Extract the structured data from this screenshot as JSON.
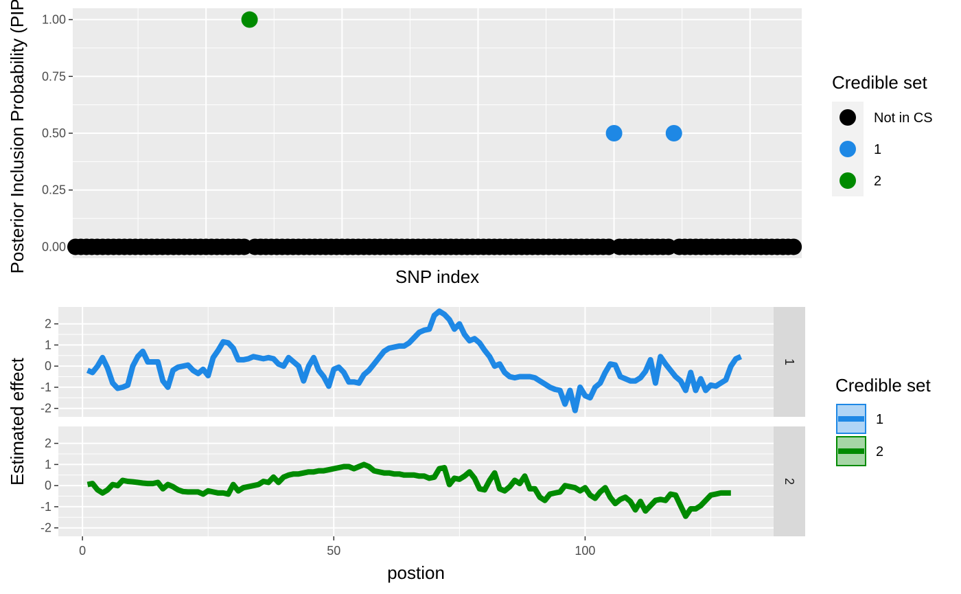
{
  "colors": {
    "not_in_cs": "#000000",
    "cs1": "#1E88E5",
    "cs2": "#008A00",
    "panel_bg": "#EBEBEB",
    "grid": "#FFFFFF",
    "strip_bg": "#D9D9D9"
  },
  "chart_data": [
    {
      "type": "scatter",
      "title": "",
      "xlabel": "SNP index",
      "ylabel": "Posterior Inclusion Probability (PIP)",
      "ylim": [
        -0.05,
        1.05
      ],
      "y_ticks": [
        "0.00",
        "0.25",
        "0.50",
        "0.75",
        "1.00"
      ],
      "y_tick_values": [
        0,
        0.25,
        0.5,
        0.75,
        1.0
      ],
      "xlim": [
        0.5,
        134.5
      ],
      "grid": true,
      "legend": {
        "title": "Credible set",
        "placement": "right",
        "entries": [
          "Not in CS",
          "1",
          "2"
        ]
      },
      "series": [
        {
          "name": "Not in CS",
          "x": [
            1,
            2,
            3,
            4,
            5,
            6,
            7,
            8,
            9,
            10,
            11,
            12,
            13,
            14,
            15,
            16,
            17,
            18,
            19,
            20,
            21,
            22,
            23,
            24,
            25,
            26,
            27,
            28,
            29,
            30,
            31,
            32,
            34,
            35,
            36,
            37,
            38,
            39,
            40,
            41,
            42,
            43,
            44,
            45,
            46,
            47,
            48,
            49,
            50,
            51,
            52,
            53,
            54,
            55,
            56,
            57,
            58,
            59,
            60,
            61,
            62,
            63,
            64,
            65,
            66,
            67,
            68,
            69,
            70,
            71,
            72,
            73,
            74,
            75,
            76,
            77,
            78,
            79,
            80,
            81,
            82,
            83,
            84,
            85,
            86,
            87,
            88,
            89,
            90,
            91,
            92,
            93,
            94,
            95,
            96,
            97,
            98,
            99,
            101,
            102,
            103,
            104,
            105,
            106,
            107,
            108,
            109,
            110,
            112,
            113,
            114,
            115,
            116,
            117,
            118,
            119,
            120,
            121,
            122,
            123,
            124,
            125,
            126,
            127,
            128,
            129,
            130,
            131,
            132,
            133
          ],
          "y": 0
        },
        {
          "name": "1",
          "x": [
            100,
            111
          ],
          "y": [
            0.5,
            0.5
          ]
        },
        {
          "name": "2",
          "x": [
            33
          ],
          "y": [
            1.0
          ]
        }
      ]
    },
    {
      "type": "line",
      "title": "",
      "xlabel": "postion",
      "ylabel": "Estimated effect",
      "xlim": [
        -4.8,
        137.5
      ],
      "x_ticks": [
        "0",
        "50",
        "100"
      ],
      "x_tick_values": [
        0,
        50,
        100
      ],
      "ylim": [
        -2.4,
        2.8
      ],
      "y_ticks": [
        "-2",
        "-1",
        "0",
        "1",
        "2"
      ],
      "y_tick_values": [
        -2,
        -1,
        0,
        1,
        2
      ],
      "facets": [
        "1",
        "2"
      ],
      "grid": true,
      "legend": {
        "title": "Credible set",
        "placement": "right",
        "entries": [
          "1",
          "2"
        ]
      },
      "series": [
        {
          "name": "1",
          "values": [
            -0.2,
            -0.3,
            0.0,
            0.4,
            -0.1,
            -0.8,
            -1.05,
            -1.0,
            -0.9,
            0.0,
            0.45,
            0.7,
            0.2,
            0.2,
            0.2,
            -0.7,
            -1.0,
            -0.2,
            -0.05,
            0.0,
            0.05,
            -0.2,
            -0.35,
            -0.15,
            -0.45,
            0.4,
            0.75,
            1.15,
            1.1,
            0.85,
            0.3,
            0.3,
            0.35,
            0.45,
            0.4,
            0.35,
            0.4,
            0.35,
            0.1,
            0.0,
            0.4,
            0.2,
            0.0,
            -0.7,
            0.0,
            0.4,
            -0.2,
            -0.5,
            -0.95,
            -0.15,
            -0.05,
            -0.3,
            -0.75,
            -0.75,
            -0.8,
            -0.4,
            -0.2,
            0.1,
            0.4,
            0.7,
            0.85,
            0.9,
            0.95,
            0.95,
            1.1,
            1.35,
            1.6,
            1.7,
            1.75,
            2.4,
            2.6,
            2.45,
            2.2,
            1.75,
            2.0,
            1.5,
            1.2,
            1.3,
            1.1,
            0.75,
            0.45,
            0.0,
            0.1,
            -0.3,
            -0.5,
            -0.55,
            -0.5,
            -0.5,
            -0.5,
            -0.55,
            -0.7,
            -0.85,
            -1.0,
            -1.1,
            -1.15,
            -1.8,
            -1.15,
            -2.1,
            -1.0,
            -1.4,
            -1.5,
            -1.0,
            -0.8,
            -0.3,
            0.1,
            0.05,
            -0.5,
            -0.6,
            -0.7,
            -0.7,
            -0.55,
            -0.25,
            0.3,
            -0.8,
            0.45,
            0.1,
            -0.2,
            -0.5,
            -0.7,
            -1.15,
            -0.3,
            -1.15,
            -0.6,
            -1.15,
            -0.9,
            -0.95,
            -0.8,
            -0.65,
            0.0,
            0.35,
            0.45
          ]
        },
        {
          "name": "2",
          "values": [
            0.05,
            0.1,
            -0.2,
            -0.35,
            -0.2,
            0.05,
            0.0,
            0.25,
            0.2,
            0.18,
            0.15,
            0.12,
            0.1,
            0.1,
            0.15,
            -0.15,
            0.05,
            -0.05,
            -0.2,
            -0.28,
            -0.3,
            -0.3,
            -0.3,
            -0.4,
            -0.25,
            -0.3,
            -0.35,
            -0.35,
            -0.4,
            0.05,
            -0.25,
            -0.1,
            -0.05,
            0.0,
            0.05,
            0.2,
            0.15,
            0.4,
            0.15,
            0.4,
            0.5,
            0.55,
            0.55,
            0.6,
            0.65,
            0.65,
            0.7,
            0.7,
            0.75,
            0.8,
            0.85,
            0.9,
            0.9,
            0.8,
            0.9,
            1.0,
            0.9,
            0.7,
            0.65,
            0.6,
            0.6,
            0.55,
            0.55,
            0.5,
            0.5,
            0.5,
            0.45,
            0.45,
            0.35,
            0.4,
            0.8,
            0.85,
            0.05,
            0.35,
            0.3,
            0.45,
            0.65,
            0.35,
            -0.15,
            -0.2,
            0.25,
            0.6,
            -0.15,
            -0.25,
            -0.05,
            0.25,
            0.1,
            0.45,
            -0.15,
            -0.15,
            -0.55,
            -0.7,
            -0.4,
            -0.35,
            -0.3,
            0.0,
            -0.05,
            -0.1,
            -0.25,
            -0.1,
            -0.45,
            -0.6,
            -0.3,
            -0.1,
            -0.55,
            -0.85,
            -0.65,
            -0.55,
            -0.75,
            -1.15,
            -0.75,
            -1.2,
            -0.95,
            -0.7,
            -0.65,
            -0.7,
            -0.4,
            -0.45,
            -0.95,
            -1.45,
            -1.1,
            -1.1,
            -0.95,
            -0.7,
            -0.45,
            -0.4,
            -0.35,
            -0.35,
            -0.35
          ]
        }
      ]
    }
  ]
}
